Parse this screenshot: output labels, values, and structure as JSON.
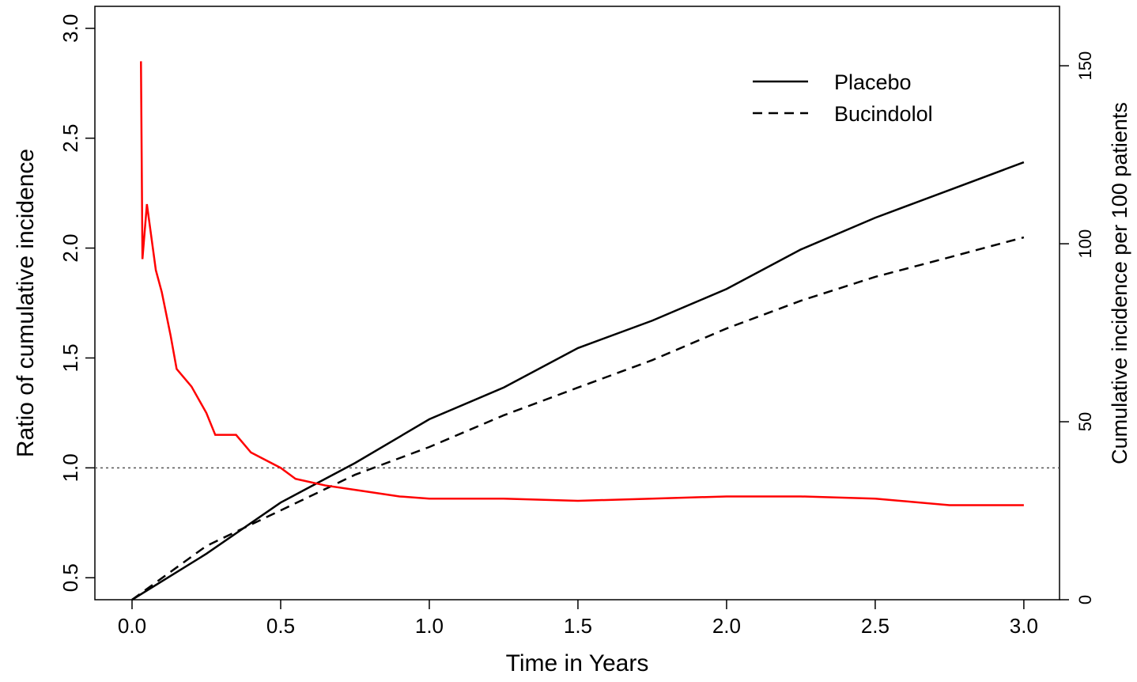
{
  "chart_data": {
    "type": "line",
    "xlabel": "Time in Years",
    "ylabel": "Ratio of cumulative incidence",
    "y2label": "Cumulative incidence per 100 patients",
    "xlim": [
      -0.125,
      3.12
    ],
    "ylim": [
      0.4,
      3.1
    ],
    "y2lim": [
      0,
      166.7
    ],
    "xticks": [
      {
        "value": 0,
        "label": "0.0"
      },
      0.5,
      {
        "value": 1,
        "label": "1.0"
      },
      1.5,
      {
        "value": 2,
        "label": "2.0"
      },
      2.5,
      {
        "value": 3,
        "label": "3.0"
      }
    ],
    "yticks": [
      0.5,
      {
        "value": 1,
        "label": "1.0"
      },
      1.5,
      {
        "value": 2,
        "label": "2.0"
      },
      2.5,
      {
        "value": 3,
        "label": "3.0"
      }
    ],
    "y2ticks": [
      0,
      50,
      100,
      150
    ],
    "hline": 1,
    "legend": "top-right",
    "series": [
      {
        "name": "Placebo",
        "color": "#000000",
        "style": "solid",
        "axis": "y2",
        "x": [
          0,
          0.25,
          0.5,
          0.75,
          1,
          1.25,
          1.5,
          1.75,
          2,
          2.25,
          2.5,
          2.75,
          3
        ],
        "values": [
          0,
          12.9,
          27.3,
          38.4,
          50.7,
          59.6,
          70.7,
          78.4,
          87.3,
          98.4,
          107.3,
          115.1,
          122.9
        ]
      },
      {
        "name": "Bucindolol",
        "color": "#000000",
        "style": "dashed",
        "axis": "y2",
        "x": [
          0,
          0.25,
          0.5,
          0.75,
          1,
          1.25,
          1.5,
          1.75,
          2,
          2.25,
          2.5,
          2.75,
          3
        ],
        "values": [
          0,
          15.1,
          25.1,
          35.1,
          42.9,
          51.8,
          59.6,
          67.3,
          76.2,
          84,
          90.7,
          96.2,
          101.8
        ]
      },
      {
        "color": "#ff0000",
        "style": "solid",
        "x": [
          0.03,
          0.035,
          0.05,
          0.08,
          0.1,
          0.13,
          0.15,
          0.2,
          0.25,
          0.28,
          0.35,
          0.4,
          0.5,
          0.55,
          0.65,
          0.75,
          0.9,
          1,
          1.25,
          1.5,
          1.75,
          2,
          2.25,
          2.5,
          2.75,
          3
        ],
        "values": [
          2.85,
          1.95,
          2.2,
          1.9,
          1.8,
          1.6,
          1.45,
          1.37,
          1.25,
          1.15,
          1.15,
          1.07,
          1,
          0.95,
          0.92,
          0.9,
          0.87,
          0.86,
          0.86,
          0.85,
          0.86,
          0.87,
          0.87,
          0.86,
          0.83,
          0.83
        ]
      }
    ]
  }
}
